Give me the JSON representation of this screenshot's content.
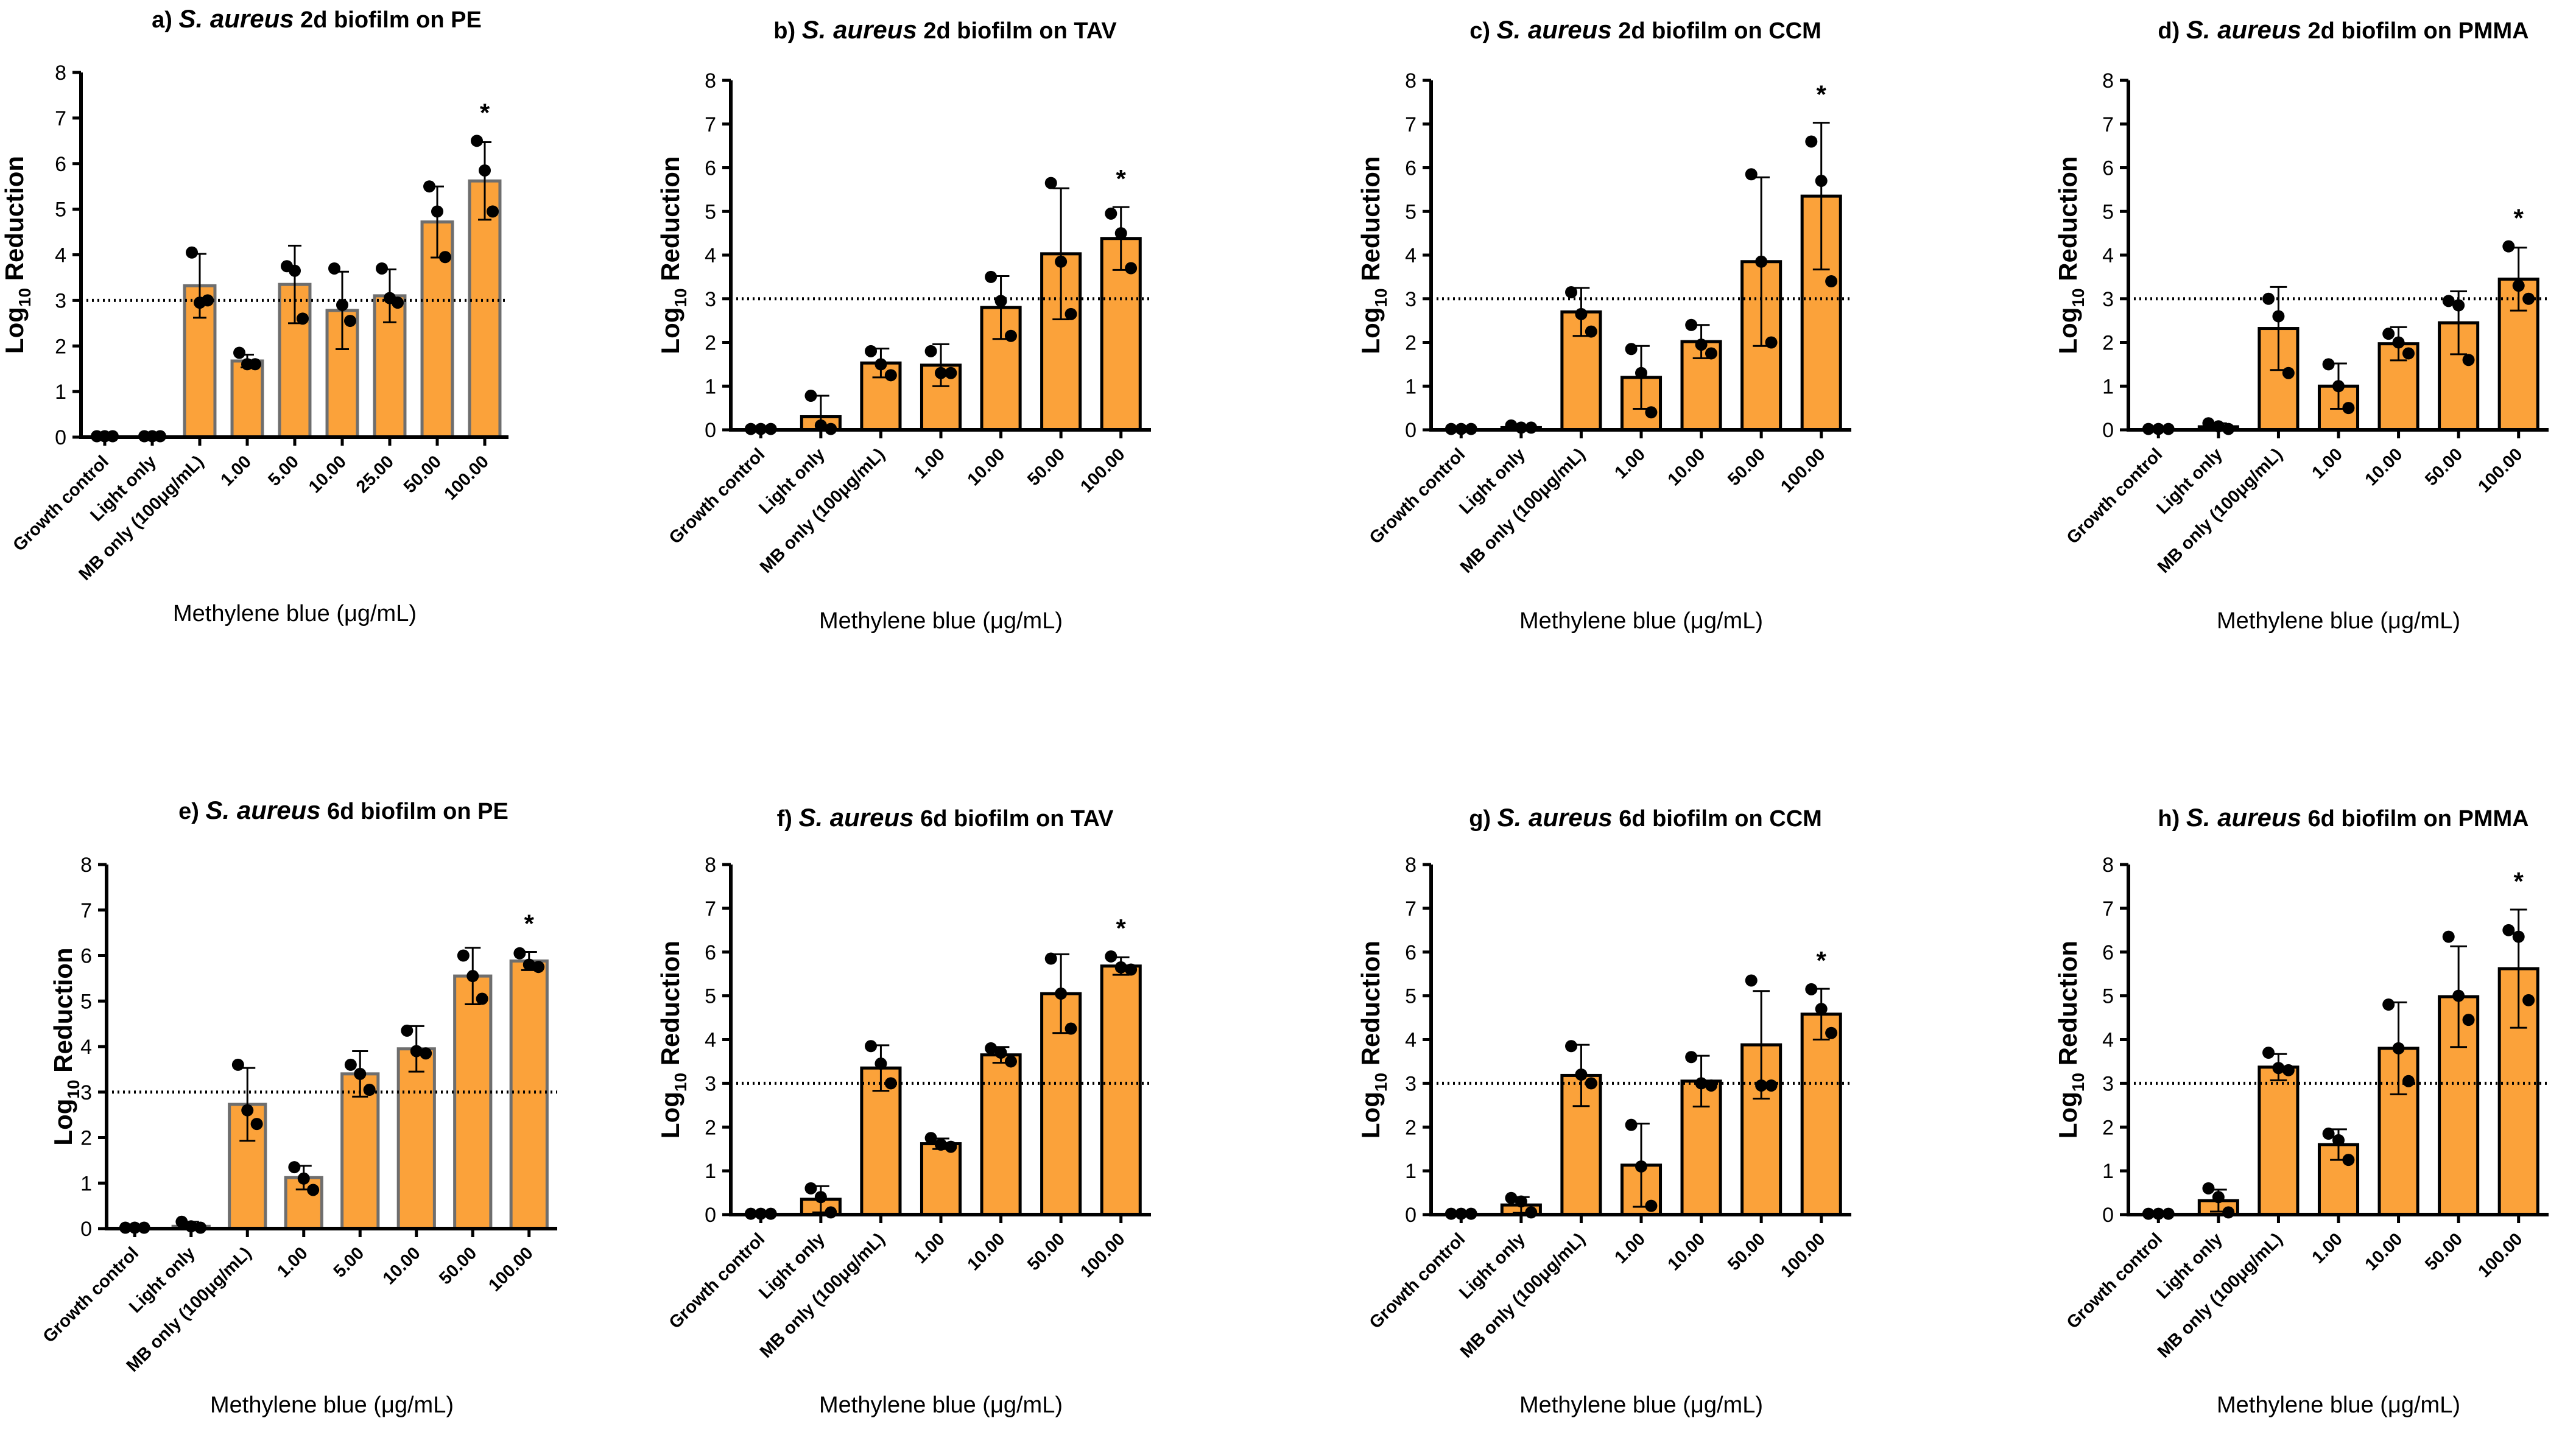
{
  "chart_data": [
    {
      "type": "bar",
      "panel_label": "a)",
      "title_italic": "S. aureus",
      "title_rest": "2d biofilm on PE",
      "ylabel_main": "Log",
      "ylabel_sub": "10",
      "ylabel_rest": "Reduction",
      "xlabel": "Methylene blue (μg/mL)",
      "ylim": [
        0,
        8
      ],
      "yticks": [
        "0",
        "1",
        "2",
        "3",
        "4",
        "5",
        "6",
        "7",
        "8"
      ],
      "threshold": 3,
      "categories": [
        "Growth control",
        "Light only",
        "MB only (100μg/mL)",
        "1.00",
        "5.00",
        "10.00",
        "25.00",
        "50.00",
        "100.00"
      ],
      "values": [
        0,
        0,
        3.32,
        1.67,
        3.35,
        2.78,
        3.1,
        4.72,
        5.62
      ],
      "errors": [
        0,
        0,
        0.7,
        0.14,
        0.85,
        0.85,
        0.58,
        0.78,
        0.85
      ],
      "points": [
        [
          0.02,
          0.02,
          0.02
        ],
        [
          0.02,
          0.02,
          0.02
        ],
        [
          4.05,
          2.95,
          3.0
        ],
        [
          1.85,
          1.6,
          1.6
        ],
        [
          3.75,
          3.65,
          2.6
        ],
        [
          3.7,
          2.9,
          2.55
        ],
        [
          3.7,
          3.05,
          2.95
        ],
        [
          5.5,
          4.95,
          3.95
        ],
        [
          6.5,
          5.85,
          4.95
        ]
      ],
      "significance": [
        8
      ],
      "significance_label": "*",
      "bar_color": "#FBA23A",
      "bar_stroke": "#6E6E6E"
    },
    {
      "type": "bar",
      "panel_label": "b)",
      "title_italic": "S. aureus",
      "title_rest": "2d biofilm on TAV",
      "ylabel_main": "Log",
      "ylabel_sub": "10",
      "ylabel_rest": "Reduction",
      "xlabel": "Methylene blue (μg/mL)",
      "ylim": [
        0,
        8
      ],
      "yticks": [
        "0",
        "1",
        "2",
        "3",
        "4",
        "5",
        "6",
        "7",
        "8"
      ],
      "threshold": 3,
      "categories": [
        "Growth control",
        "Light only",
        "MB only (100μg/mL)",
        "1.00",
        "10.00",
        "50.00",
        "100.00"
      ],
      "values": [
        0,
        0.3,
        1.53,
        1.48,
        2.8,
        4.03,
        4.38
      ],
      "errors": [
        0,
        0.48,
        0.33,
        0.48,
        0.72,
        1.5,
        0.72
      ],
      "points": [
        [
          0.02,
          0.02,
          0.02
        ],
        [
          0.78,
          0.1,
          0.02
        ],
        [
          1.8,
          1.5,
          1.25
        ],
        [
          1.8,
          1.3,
          1.3
        ],
        [
          3.5,
          2.95,
          2.15
        ],
        [
          5.65,
          3.85,
          2.65
        ],
        [
          4.95,
          4.5,
          3.7
        ]
      ],
      "significance": [
        6
      ],
      "significance_label": "*",
      "bar_color": "#FBA23A",
      "bar_stroke": "#000000"
    },
    {
      "type": "bar",
      "panel_label": "c)",
      "title_italic": "S. aureus",
      "title_rest": "2d biofilm on CCM",
      "ylabel_main": "Log",
      "ylabel_sub": "10",
      "ylabel_rest": "Reduction",
      "xlabel": "Methylene blue (μg/mL)",
      "ylim": [
        0,
        8
      ],
      "yticks": [
        "0",
        "1",
        "2",
        "3",
        "4",
        "5",
        "6",
        "7",
        "8"
      ],
      "threshold": 3,
      "categories": [
        "Growth control",
        "Light only",
        "MB only (100μg/mL)",
        "1.00",
        "10.00",
        "50.00",
        "100.00"
      ],
      "values": [
        0,
        0.05,
        2.7,
        1.2,
        2.02,
        3.85,
        5.35
      ],
      "errors": [
        0,
        0.06,
        0.55,
        0.72,
        0.38,
        1.93,
        1.68
      ],
      "points": [
        [
          0.02,
          0.02,
          0.02
        ],
        [
          0.1,
          0.05,
          0.05
        ],
        [
          3.15,
          2.65,
          2.25
        ],
        [
          1.85,
          1.3,
          0.4
        ],
        [
          2.4,
          1.95,
          1.75
        ],
        [
          5.85,
          3.85,
          2.0
        ],
        [
          6.6,
          5.7,
          3.4
        ]
      ],
      "significance": [
        6
      ],
      "significance_label": "*",
      "bar_color": "#FBA23A",
      "bar_stroke": "#000000"
    },
    {
      "type": "bar",
      "panel_label": "d)",
      "title_italic": "S. aureus",
      "title_rest": "2d biofilm on PMMA",
      "ylabel_main": "Log",
      "ylabel_sub": "10",
      "ylabel_rest": "Reduction",
      "xlabel": "Methylene blue (μg/mL)",
      "ylim": [
        0,
        8
      ],
      "yticks": [
        "0",
        "1",
        "2",
        "3",
        "4",
        "5",
        "6",
        "7",
        "8"
      ],
      "threshold": 3,
      "categories": [
        "Growth control",
        "Light only",
        "MB only (100μg/mL)",
        "1.00",
        "10.00",
        "50.00",
        "100.00"
      ],
      "values": [
        0,
        0.07,
        2.32,
        1.0,
        1.97,
        2.45,
        3.45
      ],
      "errors": [
        0,
        0.08,
        0.95,
        0.52,
        0.38,
        0.72,
        0.72
      ],
      "points": [
        [
          0.02,
          0.02,
          0.02
        ],
        [
          0.15,
          0.08,
          0.02
        ],
        [
          3.0,
          2.6,
          1.3
        ],
        [
          1.5,
          1.0,
          0.5
        ],
        [
          2.2,
          2.0,
          1.75
        ],
        [
          2.95,
          2.85,
          1.6
        ],
        [
          4.2,
          3.3,
          3.0
        ]
      ],
      "significance": [
        6
      ],
      "significance_label": "*",
      "bar_color": "#FBA23A",
      "bar_stroke": "#000000"
    },
    {
      "type": "bar",
      "panel_label": "e)",
      "title_italic": "S. aureus",
      "title_rest": "6d biofilm on PE",
      "ylabel_main": "Log",
      "ylabel_sub": "10",
      "ylabel_rest": "Reduction",
      "xlabel": "Methylene blue (μg/mL)",
      "ylim": [
        0,
        8
      ],
      "yticks": [
        "0",
        "1",
        "2",
        "3",
        "4",
        "5",
        "6",
        "7",
        "8"
      ],
      "threshold": 3,
      "categories": [
        "Growth control",
        "Light only",
        "MB only (100μg/mL)",
        "1.00",
        "5.00",
        "10.00",
        "50.00",
        "100.00"
      ],
      "values": [
        0,
        0.05,
        2.73,
        1.12,
        3.4,
        3.95,
        5.55,
        5.88
      ],
      "errors": [
        0,
        0.1,
        0.8,
        0.26,
        0.5,
        0.5,
        0.62,
        0.2
      ],
      "points": [
        [
          0.02,
          0.02,
          0.02
        ],
        [
          0.15,
          0.05,
          0.02
        ],
        [
          3.6,
          2.6,
          2.3
        ],
        [
          1.35,
          1.1,
          0.85
        ],
        [
          3.6,
          3.4,
          3.05
        ],
        [
          4.35,
          3.9,
          3.85
        ],
        [
          6.0,
          5.55,
          5.05
        ],
        [
          6.05,
          5.8,
          5.75
        ]
      ],
      "significance": [
        7
      ],
      "significance_label": "*",
      "bar_color": "#FBA23A",
      "bar_stroke": "#6E6E6E"
    },
    {
      "type": "bar",
      "panel_label": "f)",
      "title_italic": "S. aureus",
      "title_rest": "6d biofilm on TAV",
      "ylabel_main": "Log",
      "ylabel_sub": "10",
      "ylabel_rest": "Reduction",
      "xlabel": "Methylene blue (μg/mL)",
      "ylim": [
        0,
        8
      ],
      "yticks": [
        "0",
        "1",
        "2",
        "3",
        "4",
        "5",
        "6",
        "7",
        "8"
      ],
      "threshold": 3,
      "categories": [
        "Growth control",
        "Light only",
        "MB only (100μg/mL)",
        "1.00",
        "10.00",
        "50.00",
        "100.00"
      ],
      "values": [
        0,
        0.35,
        3.35,
        1.62,
        3.65,
        5.05,
        5.68
      ],
      "errors": [
        0,
        0.3,
        0.52,
        0.12,
        0.18,
        0.9,
        0.2
      ],
      "points": [
        [
          0.02,
          0.02,
          0.02
        ],
        [
          0.6,
          0.4,
          0.05
        ],
        [
          3.85,
          3.45,
          3.0
        ],
        [
          1.75,
          1.6,
          1.55
        ],
        [
          3.8,
          3.7,
          3.5
        ],
        [
          5.85,
          5.05,
          4.25
        ],
        [
          5.9,
          5.65,
          5.6
        ]
      ],
      "significance": [
        6
      ],
      "significance_label": "*",
      "bar_color": "#FBA23A",
      "bar_stroke": "#000000"
    },
    {
      "type": "bar",
      "panel_label": "g)",
      "title_italic": "S. aureus",
      "title_rest": "6d biofilm on CCM",
      "ylabel_main": "Log",
      "ylabel_sub": "10",
      "ylabel_rest": "Reduction",
      "xlabel": "Methylene blue (μg/mL)",
      "ylim": [
        0,
        8
      ],
      "yticks": [
        "0",
        "1",
        "2",
        "3",
        "4",
        "5",
        "6",
        "7",
        "8"
      ],
      "threshold": 3,
      "categories": [
        "Growth control",
        "Light only",
        "MB only (100μg/mL)",
        "1.00",
        "10.00",
        "50.00",
        "100.00"
      ],
      "values": [
        0,
        0.22,
        3.18,
        1.13,
        3.05,
        3.88,
        4.58
      ],
      "errors": [
        0,
        0.18,
        0.7,
        0.95,
        0.58,
        1.23,
        0.58
      ],
      "points": [
        [
          0.02,
          0.02,
          0.02
        ],
        [
          0.38,
          0.3,
          0.05
        ],
        [
          3.85,
          3.2,
          3.0
        ],
        [
          2.05,
          1.1,
          0.2
        ],
        [
          3.6,
          3.0,
          2.95
        ],
        [
          5.35,
          2.95,
          2.95
        ],
        [
          5.15,
          4.7,
          4.15
        ]
      ],
      "significance": [
        6
      ],
      "significance_label": "*",
      "bar_color": "#FBA23A",
      "bar_stroke": "#000000"
    },
    {
      "type": "bar",
      "panel_label": "h)",
      "title_italic": "S. aureus",
      "title_rest": "6d biofilm on PMMA",
      "ylabel_main": "Log",
      "ylabel_sub": "10",
      "ylabel_rest": "Reduction",
      "xlabel": "Methylene blue (μg/mL)",
      "ylim": [
        0,
        8
      ],
      "yticks": [
        "0",
        "1",
        "2",
        "3",
        "4",
        "5",
        "6",
        "7",
        "8"
      ],
      "threshold": 3,
      "categories": [
        "Growth control",
        "Light only",
        "MB only (100μg/mL)",
        "1.00",
        "10.00",
        "50.00",
        "100.00"
      ],
      "values": [
        0,
        0.32,
        3.37,
        1.6,
        3.8,
        4.98,
        5.62
      ],
      "errors": [
        0,
        0.25,
        0.3,
        0.35,
        1.05,
        1.15,
        1.35
      ],
      "points": [
        [
          0.02,
          0.02,
          0.02
        ],
        [
          0.6,
          0.4,
          0.05
        ],
        [
          3.7,
          3.35,
          3.3
        ],
        [
          1.85,
          1.7,
          1.25
        ],
        [
          4.8,
          3.8,
          3.05
        ],
        [
          6.35,
          5.0,
          4.45
        ],
        [
          6.5,
          6.35,
          4.9
        ]
      ],
      "significance": [
        6
      ],
      "significance_label": "*",
      "bar_color": "#FBA23A",
      "bar_stroke": "#000000"
    }
  ]
}
